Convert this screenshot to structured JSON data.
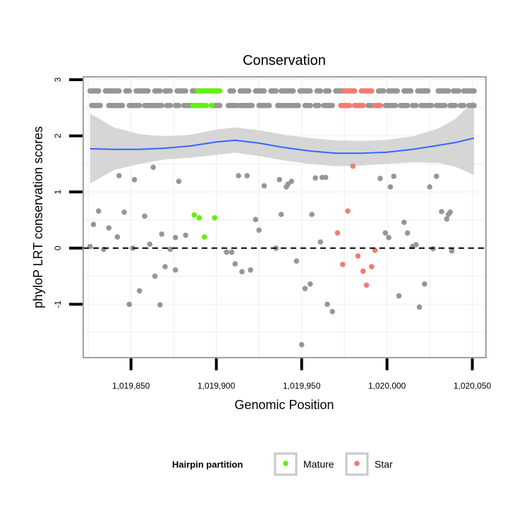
{
  "chart_data": {
    "type": "scatter",
    "title": "Conservation",
    "xlabel": "Genomic Position",
    "ylabel": "phyloP LRT conservation scores",
    "xlim": [
      1019822,
      1020058
    ],
    "ylim": [
      -1.95,
      3.05
    ],
    "x_ticks": [
      {
        "value": 1019850,
        "label": "1,019,850"
      },
      {
        "value": 1019900,
        "label": "1,019,900"
      },
      {
        "value": 1019950,
        "label": "1,019,950"
      },
      {
        "value": 1020000,
        "label": "1,020,000"
      },
      {
        "value": 1020050,
        "label": "1,020,050"
      }
    ],
    "y_ticks": [
      {
        "value": -1,
        "label": "-1"
      },
      {
        "value": 0,
        "label": "0"
      },
      {
        "value": 1,
        "label": "1"
      },
      {
        "value": 2,
        "label": "2"
      },
      {
        "value": 3,
        "label": "3"
      }
    ],
    "grid": true,
    "reference_line": {
      "y": 0,
      "style": "dashed"
    },
    "legend": {
      "title": "Hairpin partition",
      "position": "bottom",
      "entries": [
        {
          "label": "Mature",
          "color": "#66ee11"
        },
        {
          "label": "Star",
          "color": "#f07d72"
        }
      ]
    },
    "colors": {
      "other": "#969696",
      "Mature": "#66ee11",
      "Star": "#f07d72",
      "smooth": "#3366ff",
      "ribbon": "#d4d4d4"
    },
    "rows": [
      {
        "y": 2.8,
        "segments": [
          {
            "from": 1019826,
            "to": 1019831,
            "group": "other"
          },
          {
            "from": 1019835,
            "to": 1019843,
            "group": "other"
          },
          {
            "from": 1019847,
            "to": 1019849,
            "group": "other"
          },
          {
            "from": 1019853,
            "to": 1019860,
            "group": "other"
          },
          {
            "from": 1019864,
            "to": 1019867,
            "group": "other"
          },
          {
            "from": 1019870,
            "to": 1019873,
            "group": "other"
          },
          {
            "from": 1019877,
            "to": 1019882,
            "group": "other"
          },
          {
            "from": 1019886,
            "to": 1019888,
            "group": "other"
          },
          {
            "from": 1019889,
            "to": 1019902,
            "group": "Mature"
          },
          {
            "from": 1019908,
            "to": 1019910,
            "group": "other"
          },
          {
            "from": 1019914,
            "to": 1019919,
            "group": "other"
          },
          {
            "from": 1019923,
            "to": 1019928,
            "group": "other"
          },
          {
            "from": 1019932,
            "to": 1019935,
            "group": "other"
          },
          {
            "from": 1019938,
            "to": 1019945,
            "group": "other"
          },
          {
            "from": 1019949,
            "to": 1019955,
            "group": "other"
          },
          {
            "from": 1019959,
            "to": 1019961,
            "group": "other"
          },
          {
            "from": 1019964,
            "to": 1019966,
            "group": "other"
          },
          {
            "from": 1019970,
            "to": 1019974,
            "group": "other"
          },
          {
            "from": 1019975,
            "to": 1019981,
            "group": "Star"
          },
          {
            "from": 1019985,
            "to": 1019991,
            "group": "Star"
          },
          {
            "from": 1019995,
            "to": 1019998,
            "group": "other"
          },
          {
            "from": 1020001,
            "to": 1020006,
            "group": "other"
          },
          {
            "from": 1020010,
            "to": 1020014,
            "group": "other"
          },
          {
            "from": 1020018,
            "to": 1020024,
            "group": "other"
          },
          {
            "from": 1020030,
            "to": 1020036,
            "group": "other"
          },
          {
            "from": 1020039,
            "to": 1020042,
            "group": "other"
          },
          {
            "from": 1020045,
            "to": 1020051,
            "group": "other"
          }
        ]
      },
      {
        "y": 2.54,
        "segments": [
          {
            "from": 1019827,
            "to": 1019832,
            "group": "other"
          },
          {
            "from": 1019837,
            "to": 1019845,
            "group": "other"
          },
          {
            "from": 1019849,
            "to": 1019855,
            "group": "other"
          },
          {
            "from": 1019858,
            "to": 1019868,
            "group": "other"
          },
          {
            "from": 1019871,
            "to": 1019873,
            "group": "other"
          },
          {
            "from": 1019876,
            "to": 1019878,
            "group": "other"
          },
          {
            "from": 1019881,
            "to": 1019885,
            "group": "other"
          },
          {
            "from": 1019886,
            "to": 1019894,
            "group": "Mature"
          },
          {
            "from": 1019897,
            "to": 1019899,
            "group": "Mature"
          },
          {
            "from": 1019900,
            "to": 1019902,
            "group": "other"
          },
          {
            "from": 1019907,
            "to": 1019912,
            "group": "other"
          },
          {
            "from": 1019914,
            "to": 1019921,
            "group": "other"
          },
          {
            "from": 1019925,
            "to": 1019931,
            "group": "other"
          },
          {
            "from": 1019936,
            "to": 1019941,
            "group": "other"
          },
          {
            "from": 1019943,
            "to": 1019948,
            "group": "other"
          },
          {
            "from": 1019952,
            "to": 1019955,
            "group": "other"
          },
          {
            "from": 1019958,
            "to": 1019960,
            "group": "other"
          },
          {
            "from": 1019963,
            "to": 1019968,
            "group": "other"
          },
          {
            "from": 1019973,
            "to": 1019978,
            "group": "Star"
          },
          {
            "from": 1019981,
            "to": 1019986,
            "group": "Star"
          },
          {
            "from": 1019989,
            "to": 1019991,
            "group": "other"
          },
          {
            "from": 1019993,
            "to": 1019996,
            "group": "Star"
          },
          {
            "from": 1019999,
            "to": 1020005,
            "group": "other"
          },
          {
            "from": 1020008,
            "to": 1020012,
            "group": "other"
          },
          {
            "from": 1020015,
            "to": 1020017,
            "group": "other"
          },
          {
            "from": 1020020,
            "to": 1020026,
            "group": "other"
          },
          {
            "from": 1020029,
            "to": 1020034,
            "group": "other"
          },
          {
            "from": 1020037,
            "to": 1020040,
            "group": "other"
          },
          {
            "from": 1020043,
            "to": 1020045,
            "group": "other"
          },
          {
            "from": 1020048,
            "to": 1020051,
            "group": "other"
          }
        ]
      }
    ],
    "points": [
      {
        "x": 1019826,
        "y": 0.03,
        "group": "other"
      },
      {
        "x": 1019828,
        "y": 0.42,
        "group": "other"
      },
      {
        "x": 1019831,
        "y": 0.66,
        "group": "other"
      },
      {
        "x": 1019834,
        "y": -0.02,
        "group": "other"
      },
      {
        "x": 1019837,
        "y": 0.36,
        "group": "other"
      },
      {
        "x": 1019842,
        "y": 0.2,
        "group": "other"
      },
      {
        "x": 1019843,
        "y": 1.29,
        "group": "other"
      },
      {
        "x": 1019846,
        "y": 0.64,
        "group": "other"
      },
      {
        "x": 1019849,
        "y": -1.0,
        "group": "other"
      },
      {
        "x": 1019851,
        "y": 0.0,
        "group": "other"
      },
      {
        "x": 1019852,
        "y": 1.22,
        "group": "other"
      },
      {
        "x": 1019855,
        "y": -0.76,
        "group": "other"
      },
      {
        "x": 1019858,
        "y": 0.57,
        "group": "other"
      },
      {
        "x": 1019861,
        "y": 0.07,
        "group": "other"
      },
      {
        "x": 1019863,
        "y": 1.44,
        "group": "other"
      },
      {
        "x": 1019864,
        "y": -0.5,
        "group": "other"
      },
      {
        "x": 1019867,
        "y": -1.01,
        "group": "other"
      },
      {
        "x": 1019868,
        "y": 0.25,
        "group": "other"
      },
      {
        "x": 1019870,
        "y": -0.33,
        "group": "other"
      },
      {
        "x": 1019873,
        "y": -0.02,
        "group": "other"
      },
      {
        "x": 1019876,
        "y": 0.19,
        "group": "other"
      },
      {
        "x": 1019876,
        "y": -0.39,
        "group": "other"
      },
      {
        "x": 1019878,
        "y": 1.19,
        "group": "other"
      },
      {
        "x": 1019882,
        "y": 0.23,
        "group": "other"
      },
      {
        "x": 1019887,
        "y": 0.59,
        "group": "Mature"
      },
      {
        "x": 1019890,
        "y": 0.54,
        "group": "Mature"
      },
      {
        "x": 1019893,
        "y": 0.2,
        "group": "Mature"
      },
      {
        "x": 1019899,
        "y": 0.54,
        "group": "Mature"
      },
      {
        "x": 1019906,
        "y": -0.07,
        "group": "other"
      },
      {
        "x": 1019909,
        "y": -0.07,
        "group": "other"
      },
      {
        "x": 1019911,
        "y": -0.28,
        "group": "other"
      },
      {
        "x": 1019913,
        "y": 1.29,
        "group": "other"
      },
      {
        "x": 1019915,
        "y": -0.42,
        "group": "other"
      },
      {
        "x": 1019918,
        "y": 1.29,
        "group": "other"
      },
      {
        "x": 1019920,
        "y": -0.39,
        "group": "other"
      },
      {
        "x": 1019923,
        "y": 0.51,
        "group": "other"
      },
      {
        "x": 1019925,
        "y": 0.32,
        "group": "other"
      },
      {
        "x": 1019928,
        "y": 1.11,
        "group": "other"
      },
      {
        "x": 1019935,
        "y": -0.0,
        "group": "other"
      },
      {
        "x": 1019937,
        "y": 1.22,
        "group": "other"
      },
      {
        "x": 1019938,
        "y": 0.6,
        "group": "other"
      },
      {
        "x": 1019941,
        "y": 1.09,
        "group": "other"
      },
      {
        "x": 1019942,
        "y": 1.14,
        "group": "other"
      },
      {
        "x": 1019944,
        "y": 1.19,
        "group": "other"
      },
      {
        "x": 1019947,
        "y": -0.23,
        "group": "other"
      },
      {
        "x": 1019950,
        "y": -1.72,
        "group": "other"
      },
      {
        "x": 1019952,
        "y": -0.72,
        "group": "other"
      },
      {
        "x": 1019955,
        "y": -0.64,
        "group": "other"
      },
      {
        "x": 1019956,
        "y": 0.6,
        "group": "other"
      },
      {
        "x": 1019958,
        "y": 1.25,
        "group": "other"
      },
      {
        "x": 1019961,
        "y": 0.11,
        "group": "other"
      },
      {
        "x": 1019962,
        "y": 1.26,
        "group": "other"
      },
      {
        "x": 1019964,
        "y": 1.26,
        "group": "other"
      },
      {
        "x": 1019965,
        "y": -1.0,
        "group": "other"
      },
      {
        "x": 1019968,
        "y": -1.13,
        "group": "other"
      },
      {
        "x": 1019971,
        "y": 0.27,
        "group": "Star"
      },
      {
        "x": 1019974,
        "y": -0.29,
        "group": "Star"
      },
      {
        "x": 1019977,
        "y": 0.66,
        "group": "Star"
      },
      {
        "x": 1019980,
        "y": 1.46,
        "group": "Star"
      },
      {
        "x": 1019983,
        "y": -0.14,
        "group": "Star"
      },
      {
        "x": 1019986,
        "y": -0.41,
        "group": "Star"
      },
      {
        "x": 1019988,
        "y": -0.66,
        "group": "Star"
      },
      {
        "x": 1019991,
        "y": -0.33,
        "group": "Star"
      },
      {
        "x": 1019993,
        "y": -0.04,
        "group": "Star"
      },
      {
        "x": 1019996,
        "y": 1.24,
        "group": "other"
      },
      {
        "x": 1019999,
        "y": 0.27,
        "group": "other"
      },
      {
        "x": 1020001,
        "y": 0.19,
        "group": "other"
      },
      {
        "x": 1020002,
        "y": 1.09,
        "group": "other"
      },
      {
        "x": 1020004,
        "y": 1.28,
        "group": "other"
      },
      {
        "x": 1020007,
        "y": -0.85,
        "group": "other"
      },
      {
        "x": 1020010,
        "y": 0.46,
        "group": "other"
      },
      {
        "x": 1020012,
        "y": 0.27,
        "group": "other"
      },
      {
        "x": 1020015,
        "y": 0.03,
        "group": "other"
      },
      {
        "x": 1020017,
        "y": 0.06,
        "group": "other"
      },
      {
        "x": 1020019,
        "y": -1.05,
        "group": "other"
      },
      {
        "x": 1020022,
        "y": -0.64,
        "group": "other"
      },
      {
        "x": 1020025,
        "y": 1.09,
        "group": "other"
      },
      {
        "x": 1020027,
        "y": -0.01,
        "group": "other"
      },
      {
        "x": 1020029,
        "y": 1.28,
        "group": "other"
      },
      {
        "x": 1020032,
        "y": 0.65,
        "group": "other"
      },
      {
        "x": 1020035,
        "y": 0.52,
        "group": "other"
      },
      {
        "x": 1020036,
        "y": 0.6,
        "group": "other"
      },
      {
        "x": 1020037,
        "y": 0.64,
        "group": "other"
      },
      {
        "x": 1020038,
        "y": -0.05,
        "group": "other"
      }
    ],
    "smooth": [
      {
        "x": 1019826,
        "y": 1.77,
        "lo": 1.15,
        "hi": 2.4
      },
      {
        "x": 1019840,
        "y": 1.76,
        "lo": 1.39,
        "hi": 2.15
      },
      {
        "x": 1019855,
        "y": 1.76,
        "lo": 1.5,
        "hi": 2.03
      },
      {
        "x": 1019870,
        "y": 1.78,
        "lo": 1.58,
        "hi": 1.99
      },
      {
        "x": 1019885,
        "y": 1.82,
        "lo": 1.61,
        "hi": 2.02
      },
      {
        "x": 1019900,
        "y": 1.89,
        "lo": 1.66,
        "hi": 2.11
      },
      {
        "x": 1019911,
        "y": 1.92,
        "lo": 1.7,
        "hi": 2.15
      },
      {
        "x": 1019925,
        "y": 1.87,
        "lo": 1.64,
        "hi": 2.1
      },
      {
        "x": 1019940,
        "y": 1.79,
        "lo": 1.56,
        "hi": 2.02
      },
      {
        "x": 1019955,
        "y": 1.73,
        "lo": 1.5,
        "hi": 1.96
      },
      {
        "x": 1019970,
        "y": 1.69,
        "lo": 1.46,
        "hi": 1.92
      },
      {
        "x": 1019985,
        "y": 1.69,
        "lo": 1.47,
        "hi": 1.91
      },
      {
        "x": 1020000,
        "y": 1.71,
        "lo": 1.5,
        "hi": 1.93
      },
      {
        "x": 1020015,
        "y": 1.76,
        "lo": 1.53,
        "hi": 1.99
      },
      {
        "x": 1020030,
        "y": 1.83,
        "lo": 1.52,
        "hi": 2.13
      },
      {
        "x": 1020040,
        "y": 1.88,
        "lo": 1.45,
        "hi": 2.3
      },
      {
        "x": 1020051,
        "y": 1.96,
        "lo": 1.3,
        "hi": 2.62
      }
    ]
  }
}
